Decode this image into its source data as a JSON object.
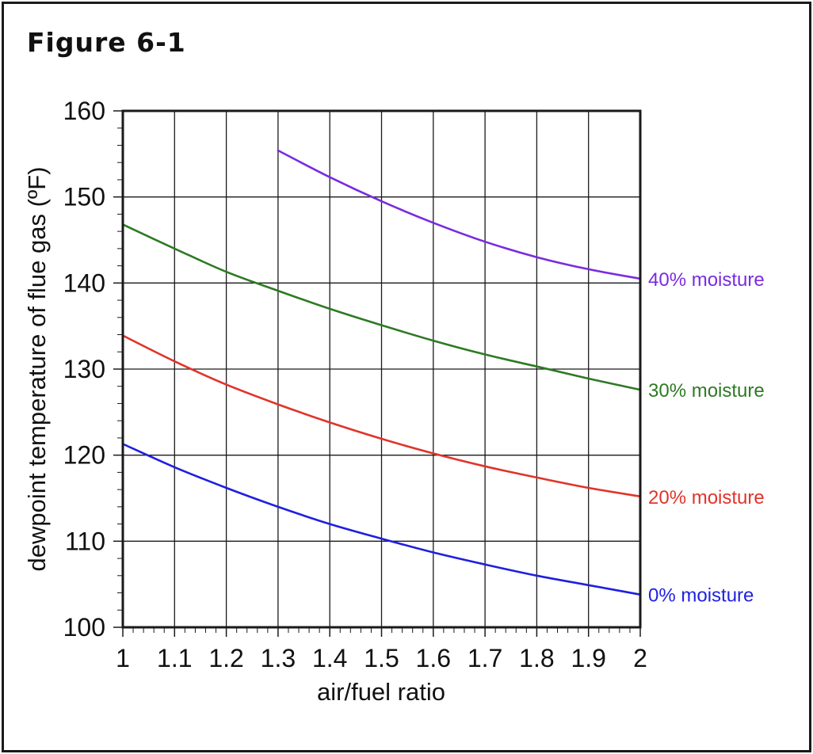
{
  "figure_title": "Figure 6-1",
  "colors": {
    "frame": "#1a1a1a",
    "grid": "#1a1a1a",
    "text": "#111111"
  },
  "chart_data": {
    "type": "line",
    "title": "",
    "xlabel": "air/fuel ratio",
    "ylabel": "dewpoint temperature of flue gas (ºF)",
    "xlim": [
      1,
      2
    ],
    "ylim": [
      100,
      160
    ],
    "x_ticks": [
      "1",
      "1.1",
      "1.2",
      "1.3",
      "1.4",
      "1.5",
      "1.6",
      "1.7",
      "1.8",
      "1.9",
      "2"
    ],
    "y_ticks": [
      "100",
      "110",
      "120",
      "130",
      "140",
      "150",
      "160"
    ],
    "grid": true,
    "legend": "inline labels at right end of each curve",
    "series": [
      {
        "name": "0% moisture",
        "color": "#1f1fe0",
        "x": [
          1.0,
          1.1,
          1.2,
          1.3,
          1.4,
          1.5,
          1.6,
          1.7,
          1.8,
          1.9,
          2.0
        ],
        "y": [
          121.3,
          118.6,
          116.2,
          114.0,
          112.0,
          110.3,
          108.7,
          107.3,
          106.0,
          104.9,
          103.8
        ]
      },
      {
        "name": "20% moisture",
        "color": "#e0342a",
        "x": [
          1.0,
          1.1,
          1.2,
          1.3,
          1.4,
          1.5,
          1.6,
          1.7,
          1.8,
          1.9,
          2.0
        ],
        "y": [
          133.9,
          130.9,
          128.2,
          125.9,
          123.8,
          121.9,
          120.2,
          118.7,
          117.4,
          116.2,
          115.2
        ]
      },
      {
        "name": "30% moisture",
        "color": "#2e7a24",
        "x": [
          1.0,
          1.1,
          1.2,
          1.3,
          1.4,
          1.5,
          1.6,
          1.7,
          1.8,
          1.9,
          2.0
        ],
        "y": [
          146.8,
          144.0,
          141.3,
          139.1,
          137.0,
          135.1,
          133.3,
          131.7,
          130.3,
          128.9,
          127.6
        ]
      },
      {
        "name": "40% moisture",
        "color": "#7a2be0",
        "x": [
          1.3,
          1.4,
          1.5,
          1.6,
          1.7,
          1.8,
          1.9,
          2.0
        ],
        "y": [
          155.4,
          152.3,
          149.5,
          147.0,
          144.8,
          143.0,
          141.6,
          140.5
        ]
      }
    ]
  }
}
